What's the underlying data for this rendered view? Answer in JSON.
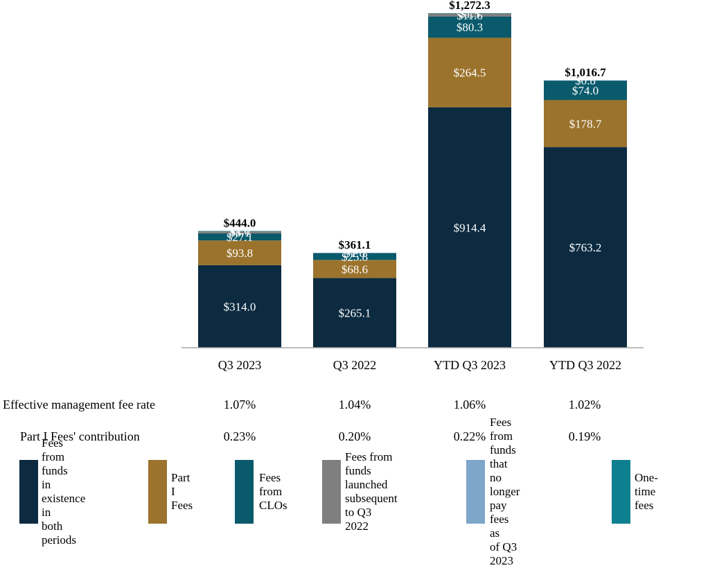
{
  "chart_data": {
    "type": "bar",
    "stacked": true,
    "categories": [
      "Q3 2023",
      "Q3 2022",
      "YTD Q3 2023",
      "YTD Q3 2022"
    ],
    "series": [
      {
        "name": "Fees from funds in existence in both periods",
        "color": "#0c2a40",
        "values": [
          314.0,
          265.1,
          914.4,
          763.2
        ],
        "labels": [
          "$314.0",
          "$265.1",
          "$914.4",
          "$763.2"
        ]
      },
      {
        "name": "Part I Fees",
        "color": "#9b732d",
        "values": [
          93.8,
          68.6,
          264.5,
          178.7
        ],
        "labels": [
          "$93.8",
          "$68.6",
          "$264.5",
          "$178.7"
        ]
      },
      {
        "name": "Fees from CLOs",
        "color": "#0a5a6c",
        "values": [
          27.1,
          25.8,
          80.3,
          74.0
        ],
        "labels": [
          "$27.1",
          "$25.8",
          "$80.3",
          "$74.0"
        ]
      },
      {
        "name": "Fees from funds launched subsequent to Q3 2022",
        "color": "#7f7f7f",
        "values": [
          8.1,
          0,
          11.6,
          0
        ],
        "labels": [
          "$8.1",
          "",
          "$11.6",
          ""
        ]
      },
      {
        "name": "Fees from funds that no longer pay fees as of Q3 2023",
        "color": "#7ea6c9",
        "values": [
          0,
          1.6,
          0,
          0.8
        ],
        "labels": [
          "",
          "$1.6",
          "",
          "$0.8"
        ]
      },
      {
        "name": "One-time fees",
        "color": "#0e7f8e",
        "values": [
          1.0,
          0,
          1.5,
          0
        ],
        "labels": [
          "$1.0",
          "",
          "$1.5",
          ""
        ]
      }
    ],
    "totals": [
      444.0,
      361.1,
      1272.3,
      1016.7
    ],
    "total_labels": [
      "$444.0",
      "$361.1",
      "$1,272.3",
      "$1,016.7"
    ],
    "ylim": [
      0,
      1272.3
    ],
    "xlabel": "",
    "ylabel": "",
    "title": "",
    "grid": false,
    "legend_position": "bottom"
  },
  "stats": {
    "management_fee_rate": {
      "label": "Effective management fee rate",
      "values": [
        "1.07%",
        "1.04%",
        "1.06%",
        "1.02%"
      ]
    },
    "part_i_contribution": {
      "label": "Part I Fees' contribution",
      "values": [
        "0.23%",
        "0.20%",
        "0.22%",
        "0.19%"
      ]
    }
  },
  "legend": [
    {
      "text": "Fees from funds\nin existence in\nboth periods",
      "color": "#0c2a40"
    },
    {
      "text": "Part I\nFees",
      "color": "#9b732d"
    },
    {
      "text": "Fees from\nCLOs",
      "color": "#0a5a6c"
    },
    {
      "text": "Fees from funds\nlaunched subsequent\nto Q3 2022",
      "color": "#7f7f7f"
    },
    {
      "text": "Fees from funds that\nno longer pay fees as\nof Q3 2023",
      "color": "#7ea6c9"
    },
    {
      "text": "One-time fees",
      "color": "#0e7f8e"
    }
  ]
}
